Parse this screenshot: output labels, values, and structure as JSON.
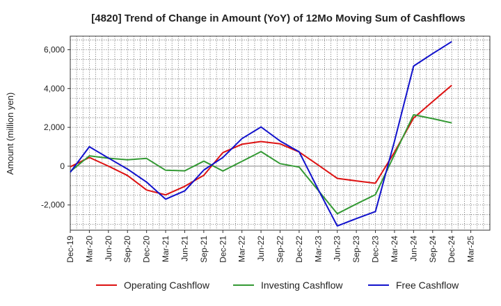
{
  "chart_data": {
    "type": "line",
    "title": "[4820]  Trend of Change in Amount (YoY) of 12Mo Moving Sum of Cashflows",
    "xlabel": "",
    "ylabel": "Amount (million yen)",
    "ylim": [
      -3300,
      6700
    ],
    "yticks": [
      -2000,
      0,
      2000,
      4000,
      6000
    ],
    "ytick_labels": [
      "-2,000",
      "0",
      "2,000",
      "4,000",
      "6,000"
    ],
    "categories": [
      "Dec-19",
      "Mar-20",
      "Jun-20",
      "Sep-20",
      "Dec-20",
      "Mar-21",
      "Jun-21",
      "Sep-21",
      "Dec-21",
      "Mar-22",
      "Jun-22",
      "Sep-22",
      "Dec-22",
      "Mar-23",
      "Jun-23",
      "Sep-23",
      "Dec-23",
      "Mar-24",
      "Jun-24",
      "Sep-24",
      "Dec-24",
      "Mar-25"
    ],
    "grid": true,
    "legend_position": "bottom",
    "series": [
      {
        "name": "Operating Cashflow",
        "color": "#dd1111",
        "values": [
          -30,
          450,
          0,
          -480,
          -1230,
          -1480,
          -1040,
          -470,
          700,
          1130,
          1270,
          1150,
          730,
          60,
          -630,
          -760,
          -880,
          730,
          2480,
          3330,
          4170,
          null
        ]
      },
      {
        "name": "Investing Cashflow",
        "color": "#339933",
        "values": [
          -280,
          530,
          410,
          330,
          400,
          -210,
          -240,
          260,
          -250,
          250,
          750,
          130,
          -50,
          -1250,
          -2450,
          -1950,
          -1470,
          600,
          2650,
          2450,
          2230,
          null
        ]
      },
      {
        "name": "Free Cashflow",
        "color": "#1111cc",
        "values": [
          -310,
          1000,
          420,
          -150,
          -820,
          -1700,
          -1270,
          -200,
          450,
          1420,
          2020,
          1300,
          740,
          -1200,
          -3080,
          -2700,
          -2340,
          1300,
          5160,
          5800,
          6420,
          null
        ]
      }
    ]
  }
}
